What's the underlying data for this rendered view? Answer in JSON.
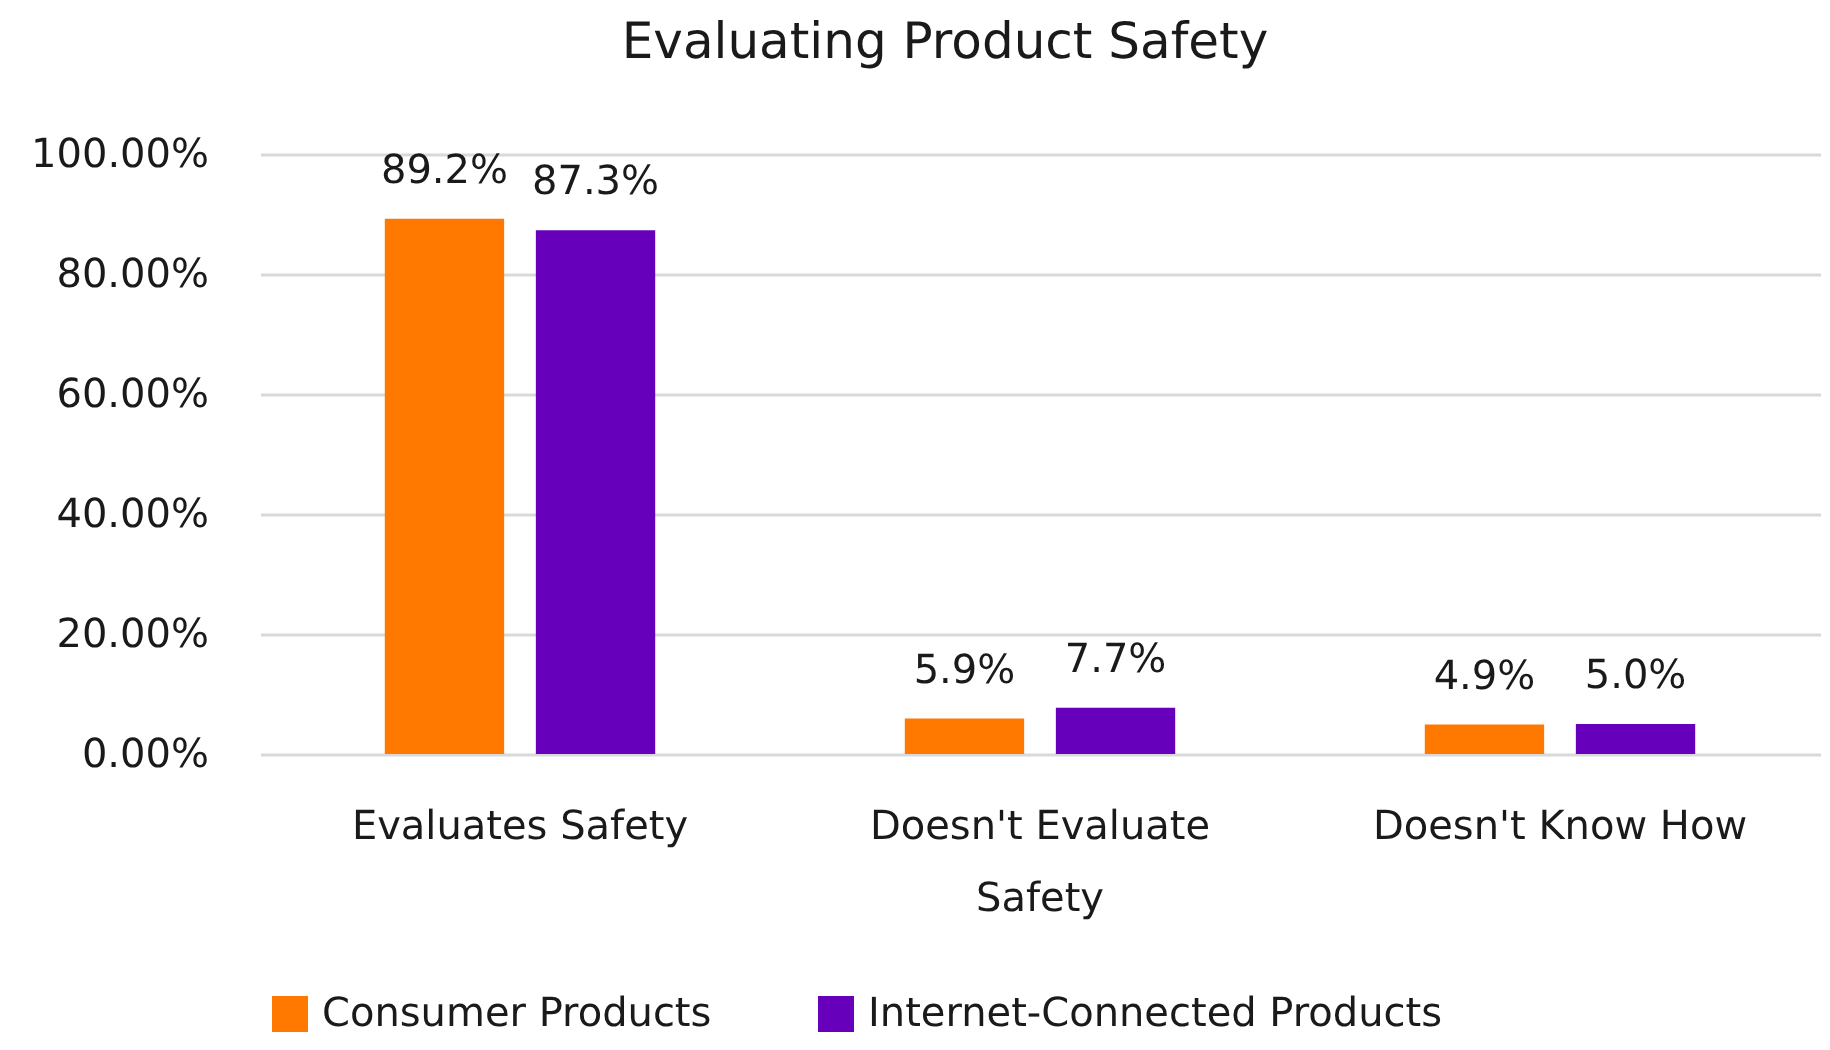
{
  "chart_data": {
    "type": "bar",
    "title": "Evaluating Product Safety",
    "categories": [
      "Evaluates Safety",
      "Doesn't Evaluate Safety",
      "Doesn't Know How"
    ],
    "series": [
      {
        "name": "Consumer Products",
        "color": "#ff7800",
        "values": [
          89.2,
          5.9,
          4.9
        ],
        "value_labels": [
          "89.2%",
          "5.9%",
          "4.9%"
        ]
      },
      {
        "name": "Internet-Connected Products",
        "color": "#6600bb",
        "values": [
          87.3,
          7.7,
          5.0
        ],
        "value_labels": [
          "87.3%",
          "7.7%",
          "5.0%"
        ]
      }
    ],
    "ylim": [
      0,
      100
    ],
    "yticks": [
      {
        "value": 0,
        "label": "0.00%"
      },
      {
        "value": 20,
        "label": "20.00%"
      },
      {
        "value": 40,
        "label": "40.00%"
      },
      {
        "value": 60,
        "label": "60.00%"
      },
      {
        "value": 80,
        "label": "80.00%"
      },
      {
        "value": 100,
        "label": "100.00%"
      }
    ],
    "grid": "y",
    "legend": "bottom"
  }
}
